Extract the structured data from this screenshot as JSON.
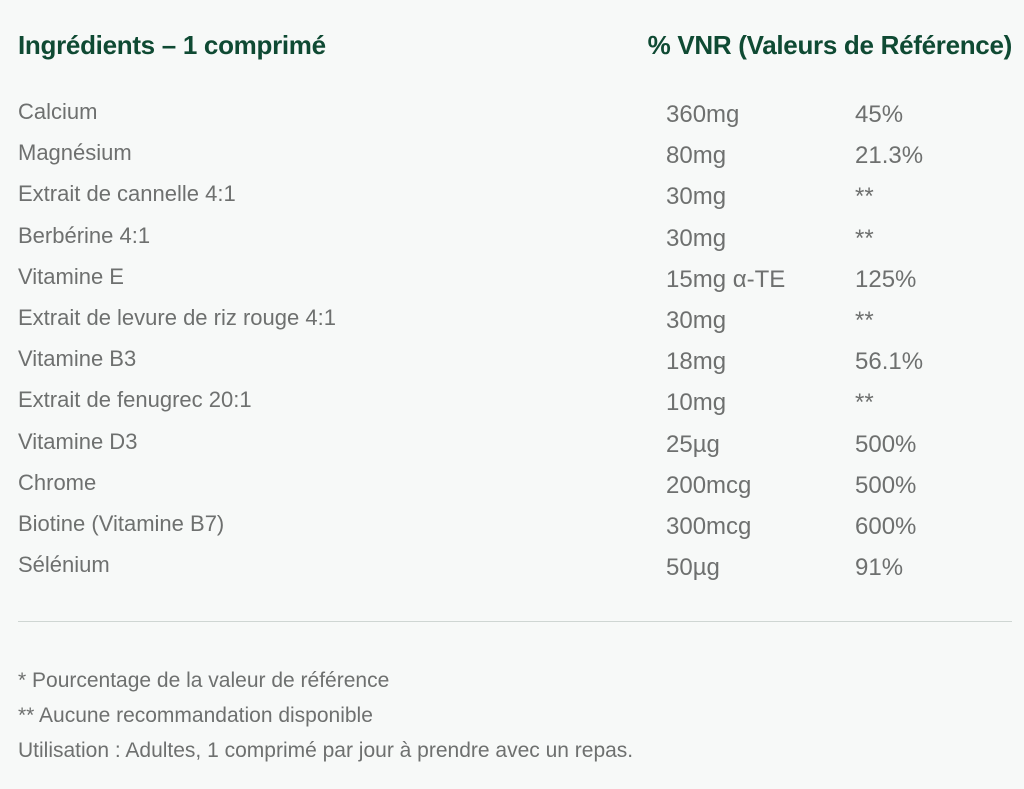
{
  "header": {
    "ingredients": "Ingrédients – 1 comprimé",
    "vnr": "% VNR (Valeurs de Référence)"
  },
  "rows": [
    {
      "name": "Calcium",
      "amount": "360mg",
      "vnr": "45%"
    },
    {
      "name": "Magnésium",
      "amount": "80mg",
      "vnr": "21.3%"
    },
    {
      "name": "Extrait de cannelle 4:1",
      "amount": "30mg",
      "vnr": "**"
    },
    {
      "name": "Berbérine 4:1",
      "amount": "30mg",
      "vnr": "**"
    },
    {
      "name": "Vitamine E",
      "amount": "15mg α-TE",
      "vnr": "125%"
    },
    {
      "name": "Extrait de levure de riz rouge 4:1",
      "amount": "30mg",
      "vnr": "**"
    },
    {
      "name": "Vitamine B3",
      "amount": "18mg",
      "vnr": "56.1%"
    },
    {
      "name": "Extrait de fenugrec 20:1",
      "amount": "10mg",
      "vnr": "**"
    },
    {
      "name": "Vitamine D3",
      "amount": "25µg",
      "vnr": "500%"
    },
    {
      "name": "Chrome",
      "amount": "200mcg",
      "vnr": "500%"
    },
    {
      "name": "Biotine (Vitamine B7)",
      "amount": "300mcg",
      "vnr": "600%"
    },
    {
      "name": "Sélénium",
      "amount": "50µg",
      "vnr": "91%"
    }
  ],
  "footer": [
    "* Pourcentage de la valeur de référence",
    "** Aucune recommandation disponible",
    "Utilisation : Adultes, 1 comprimé par jour à prendre avec un repas."
  ],
  "colors": {
    "heading": "#0f4a33",
    "text": "#6e706f",
    "background": "#f7f9f8"
  }
}
